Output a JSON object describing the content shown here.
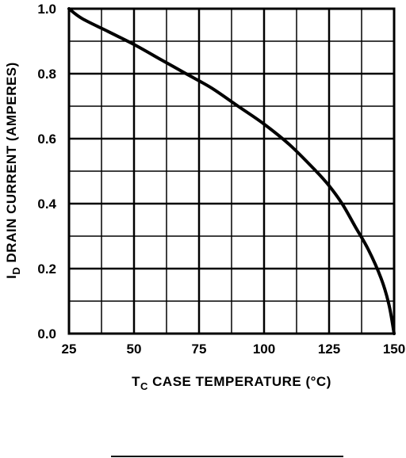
{
  "chart_data": {
    "type": "line",
    "x": [
      25,
      30,
      40,
      50,
      60,
      70,
      80,
      90,
      100,
      110,
      120,
      125,
      130,
      135,
      140,
      145,
      148,
      150
    ],
    "series": [
      {
        "values": [
          1.0,
          0.97,
          0.93,
          0.89,
          0.845,
          0.8,
          0.755,
          0.7,
          0.645,
          0.58,
          0.5,
          0.455,
          0.4,
          0.33,
          0.26,
          0.17,
          0.09,
          0.0
        ]
      }
    ],
    "xlim": [
      25,
      150
    ],
    "ylim": [
      0.0,
      1.0
    ],
    "xticks": [
      "25",
      "50",
      "75",
      "100",
      "125",
      "150"
    ],
    "yticks": [
      "0.0",
      "0.2",
      "0.4",
      "0.6",
      "0.8",
      "1.0"
    ],
    "xlabel_sym": "T",
    "xlabel_sub": "C",
    "xlabel_text": " CASE TEMPERATURE (°C)",
    "ylabel_sym": "I",
    "ylabel_sub": "D",
    "ylabel_text": " DRAIN CURRENT (AMPERES)",
    "grid": true,
    "line_color": "#000000"
  }
}
